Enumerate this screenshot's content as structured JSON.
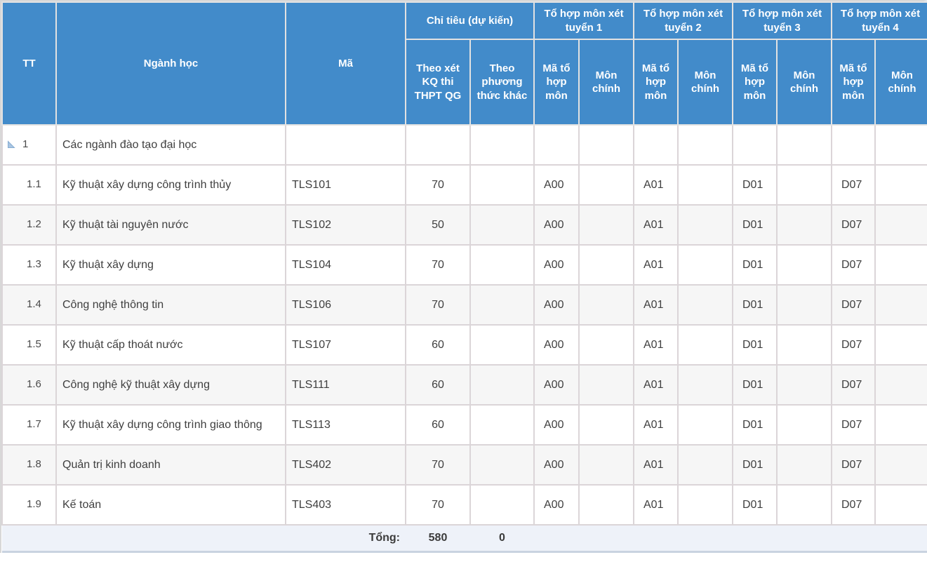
{
  "header": {
    "tt": "TT",
    "nganh_hoc": "Ngành học",
    "ma": "Mã",
    "chi_tieu": {
      "group": "Chỉ tiêu (dự kiến)",
      "thpt": "Theo xét KQ thi THPT QG",
      "khac": "Theo phương thức khác"
    },
    "to_hop": {
      "groups": [
        "Tổ hợp môn xét tuyển 1",
        "Tổ hợp môn xét tuyển 2",
        "Tổ hợp môn xét tuyển 3",
        "Tổ hợp môn xét tuyển 4"
      ],
      "ma_to_hop": "Mã tổ hợp môn",
      "mon_chinh": "Môn chính"
    }
  },
  "rows": [
    {
      "tt": "1",
      "group": true,
      "name": "Các ngành đào tạo đại học",
      "ma": "",
      "thpt": "",
      "khac": "",
      "combos": [
        "",
        "",
        "",
        ""
      ],
      "mains": [
        "",
        "",
        "",
        ""
      ]
    },
    {
      "tt": "1.1",
      "group": false,
      "name": "Kỹ thuật xây dựng công trình thủy",
      "ma": "TLS101",
      "thpt": "70",
      "khac": "",
      "combos": [
        "A00",
        "A01",
        "D01",
        "D07"
      ],
      "mains": [
        "",
        "",
        "",
        ""
      ]
    },
    {
      "tt": "1.2",
      "group": false,
      "name": "Kỹ thuật tài nguyên nước",
      "ma": "TLS102",
      "thpt": "50",
      "khac": "",
      "combos": [
        "A00",
        "A01",
        "D01",
        "D07"
      ],
      "mains": [
        "",
        "",
        "",
        ""
      ]
    },
    {
      "tt": "1.3",
      "group": false,
      "name": "Kỹ thuật xây dựng",
      "ma": "TLS104",
      "thpt": "70",
      "khac": "",
      "combos": [
        "A00",
        "A01",
        "D01",
        "D07"
      ],
      "mains": [
        "",
        "",
        "",
        ""
      ]
    },
    {
      "tt": "1.4",
      "group": false,
      "name": "Công nghệ thông tin",
      "ma": "TLS106",
      "thpt": "70",
      "khac": "",
      "combos": [
        "A00",
        "A01",
        "D01",
        "D07"
      ],
      "mains": [
        "",
        "",
        "",
        ""
      ]
    },
    {
      "tt": "1.5",
      "group": false,
      "name": "Kỹ thuật cấp thoát nước",
      "ma": "TLS107",
      "thpt": "60",
      "khac": "",
      "combos": [
        "A00",
        "A01",
        "D01",
        "D07"
      ],
      "mains": [
        "",
        "",
        "",
        ""
      ]
    },
    {
      "tt": "1.6",
      "group": false,
      "name": "Công nghệ kỹ thuật xây dựng",
      "ma": "TLS111",
      "thpt": "60",
      "khac": "",
      "combos": [
        "A00",
        "A01",
        "D01",
        "D07"
      ],
      "mains": [
        "",
        "",
        "",
        ""
      ]
    },
    {
      "tt": "1.7",
      "group": false,
      "name": "Kỹ thuật xây dựng công trình giao thông",
      "ma": "TLS113",
      "thpt": "60",
      "khac": "",
      "combos": [
        "A00",
        "A01",
        "D01",
        "D07"
      ],
      "mains": [
        "",
        "",
        "",
        ""
      ]
    },
    {
      "tt": "1.8",
      "group": false,
      "name": "Quản trị kinh doanh",
      "ma": "TLS402",
      "thpt": "70",
      "khac": "",
      "combos": [
        "A00",
        "A01",
        "D01",
        "D07"
      ],
      "mains": [
        "",
        "",
        "",
        ""
      ]
    },
    {
      "tt": "1.9",
      "group": false,
      "name": "Kế toán",
      "ma": "TLS403",
      "thpt": "70",
      "khac": "",
      "combos": [
        "A00",
        "A01",
        "D01",
        "D07"
      ],
      "mains": [
        "",
        "",
        "",
        ""
      ]
    }
  ],
  "footer": {
    "label": "Tổng:",
    "total_thpt": "580",
    "total_khac": "0"
  },
  "icons": {
    "group_expander": "collapse-triangle"
  },
  "colors": {
    "header_bg": "#428bca",
    "header_text": "#ffffff",
    "body_border": "#dbd5d8",
    "alt_row_bg": "#f6f6f6",
    "footer_bg": "#eef2f9",
    "expander_fill": "#a9c5e2",
    "expander_edge": "#86add2"
  }
}
